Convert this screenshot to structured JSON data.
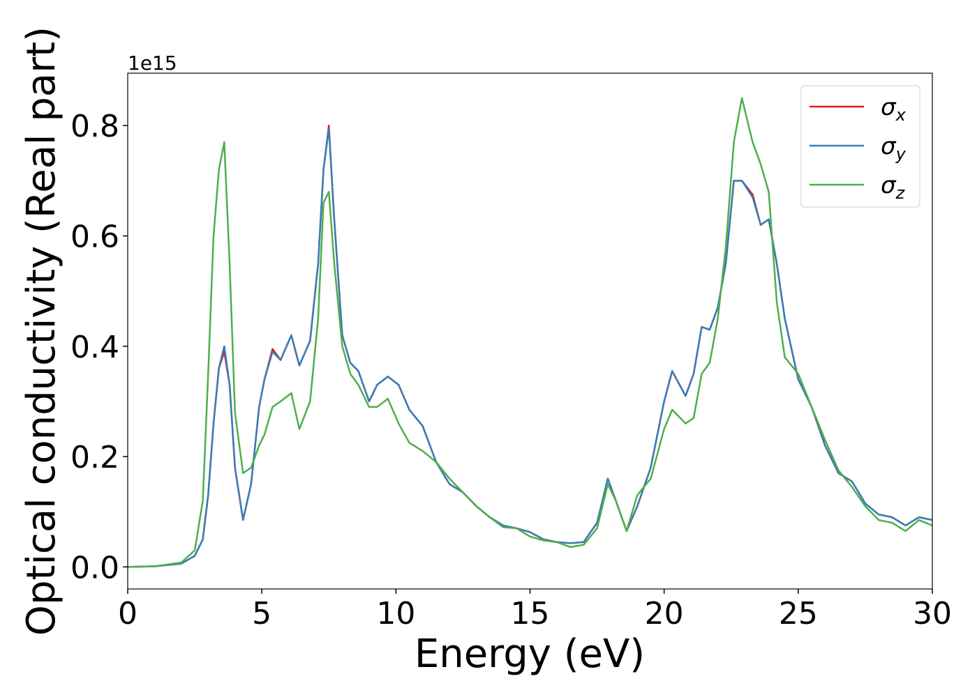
{
  "chart_data": {
    "type": "line",
    "offset_text": "1e15",
    "xlabel": "Energy (eV)",
    "ylabel": "Optical conductivity (Real part)",
    "x": [
      0,
      1,
      2,
      2.5,
      2.8,
      3.0,
      3.2,
      3.4,
      3.6,
      3.8,
      4.0,
      4.3,
      4.6,
      4.9,
      5.1,
      5.4,
      5.7,
      6.1,
      6.4,
      6.8,
      7.1,
      7.3,
      7.5,
      7.7,
      8.0,
      8.3,
      8.6,
      9.0,
      9.3,
      9.7,
      10.1,
      10.5,
      11,
      11.5,
      12,
      12.5,
      13,
      13.5,
      14,
      14.5,
      15,
      15.5,
      16,
      16.5,
      17,
      17.5,
      17.9,
      18.2,
      18.6,
      19,
      19.5,
      20,
      20.3,
      20.8,
      21.1,
      21.4,
      21.7,
      22,
      22.3,
      22.6,
      22.9,
      23.3,
      23.6,
      23.9,
      24.2,
      24.5,
      25,
      25.5,
      26,
      26.5,
      27,
      27.5,
      28,
      28.5,
      29,
      29.5,
      30
    ],
    "series": [
      {
        "name": "σx",
        "color": "#e41a1c",
        "values": [
          0,
          0.001,
          0.006,
          0.02,
          0.05,
          0.13,
          0.26,
          0.36,
          0.39,
          0.33,
          0.18,
          0.085,
          0.15,
          0.29,
          0.34,
          0.395,
          0.375,
          0.42,
          0.365,
          0.41,
          0.55,
          0.72,
          0.8,
          0.63,
          0.42,
          0.37,
          0.355,
          0.3,
          0.33,
          0.345,
          0.33,
          0.285,
          0.255,
          0.19,
          0.15,
          0.135,
          0.11,
          0.09,
          0.075,
          0.07,
          0.063,
          0.05,
          0.045,
          0.043,
          0.045,
          0.08,
          0.16,
          0.12,
          0.065,
          0.11,
          0.18,
          0.3,
          0.355,
          0.31,
          0.35,
          0.435,
          0.43,
          0.47,
          0.55,
          0.7,
          0.7,
          0.675,
          0.62,
          0.63,
          0.55,
          0.45,
          0.34,
          0.29,
          0.22,
          0.17,
          0.155,
          0.115,
          0.095,
          0.09,
          0.075,
          0.09,
          0.085
        ]
      },
      {
        "name": "σy",
        "color": "#377eb8",
        "values": [
          0,
          0.001,
          0.006,
          0.02,
          0.05,
          0.13,
          0.26,
          0.36,
          0.4,
          0.33,
          0.18,
          0.085,
          0.15,
          0.29,
          0.34,
          0.39,
          0.375,
          0.42,
          0.365,
          0.41,
          0.55,
          0.72,
          0.795,
          0.63,
          0.42,
          0.37,
          0.355,
          0.3,
          0.33,
          0.345,
          0.33,
          0.285,
          0.255,
          0.19,
          0.15,
          0.135,
          0.11,
          0.09,
          0.075,
          0.07,
          0.063,
          0.05,
          0.045,
          0.043,
          0.045,
          0.08,
          0.16,
          0.12,
          0.065,
          0.11,
          0.18,
          0.3,
          0.355,
          0.31,
          0.35,
          0.435,
          0.43,
          0.47,
          0.55,
          0.7,
          0.7,
          0.67,
          0.62,
          0.63,
          0.55,
          0.45,
          0.34,
          0.29,
          0.22,
          0.17,
          0.155,
          0.115,
          0.095,
          0.09,
          0.075,
          0.09,
          0.085
        ]
      },
      {
        "name": "σz",
        "color": "#4daf4a",
        "values": [
          0,
          0.001,
          0.008,
          0.03,
          0.12,
          0.35,
          0.6,
          0.72,
          0.77,
          0.55,
          0.28,
          0.17,
          0.18,
          0.22,
          0.24,
          0.29,
          0.3,
          0.315,
          0.25,
          0.3,
          0.45,
          0.66,
          0.68,
          0.55,
          0.4,
          0.35,
          0.33,
          0.29,
          0.29,
          0.305,
          0.26,
          0.225,
          0.21,
          0.19,
          0.16,
          0.135,
          0.11,
          0.09,
          0.072,
          0.07,
          0.055,
          0.048,
          0.045,
          0.036,
          0.04,
          0.07,
          0.15,
          0.12,
          0.065,
          0.13,
          0.16,
          0.25,
          0.285,
          0.26,
          0.27,
          0.35,
          0.37,
          0.45,
          0.58,
          0.77,
          0.85,
          0.77,
          0.73,
          0.68,
          0.48,
          0.38,
          0.35,
          0.29,
          0.23,
          0.175,
          0.145,
          0.11,
          0.085,
          0.08,
          0.065,
          0.085,
          0.075
        ]
      }
    ],
    "xlim": [
      0,
      30
    ],
    "xticks": [
      0,
      5,
      10,
      15,
      20,
      25,
      30
    ],
    "ylim": [
      -0.04,
      0.895
    ],
    "yticks": [
      {
        "value": 0,
        "label": "0.0"
      },
      {
        "value": 0.2,
        "label": "0.2"
      },
      {
        "value": 0.4,
        "label": "0.4"
      },
      {
        "value": 0.6,
        "label": "0.6"
      },
      {
        "value": 0.8,
        "label": "0.8"
      }
    ],
    "legend": "upper right"
  }
}
